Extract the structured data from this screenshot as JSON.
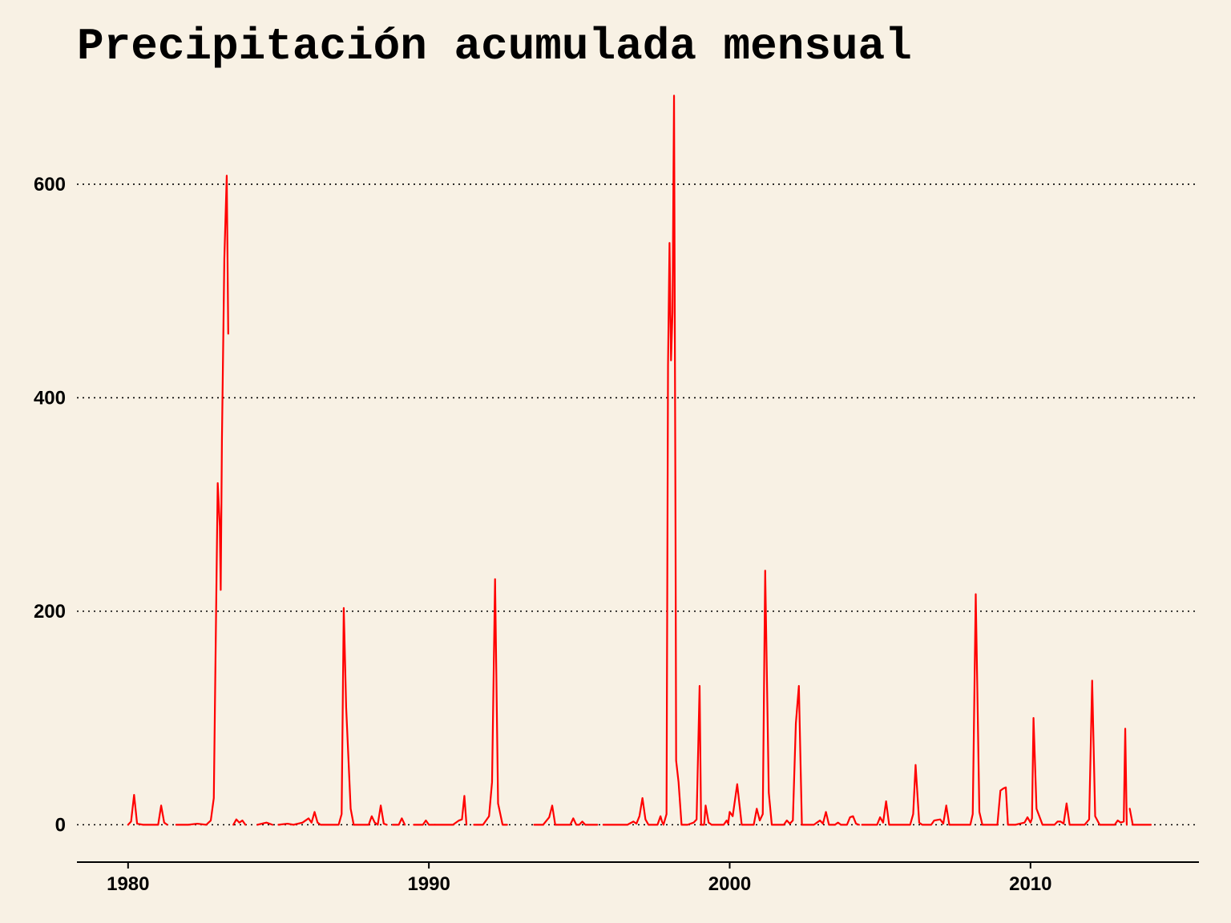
{
  "chart_data": {
    "type": "line",
    "title": "Precipitación acumulada mensual",
    "xlabel": "",
    "ylabel": "",
    "xlim": [
      1978.3,
      2015.6
    ],
    "ylim": [
      -35,
      690
    ],
    "x_ticks": [
      1980,
      1990,
      2000,
      2010
    ],
    "x_tick_labels": [
      "1980",
      "1990",
      "2000",
      "2010"
    ],
    "y_ticks": [
      0,
      200,
      400,
      600
    ],
    "y_tick_labels": [
      "0",
      "200",
      "400",
      "600"
    ],
    "grid": "horizontal dotted",
    "legend": "none",
    "series": [
      {
        "color": "#FF0000",
        "segments": [
          [
            [
              1980.0,
              0
            ],
            [
              1980.1,
              3
            ],
            [
              1980.2,
              28
            ],
            [
              1980.3,
              1
            ],
            [
              1980.5,
              0
            ],
            [
              1981.0,
              0
            ],
            [
              1981.1,
              18
            ],
            [
              1981.2,
              2
            ],
            [
              1981.3,
              0
            ]
          ],
          [
            [
              1981.6,
              0
            ],
            [
              1982.0,
              0
            ],
            [
              1982.3,
              1
            ],
            [
              1982.6,
              0
            ],
            [
              1982.75,
              4
            ],
            [
              1982.85,
              25
            ],
            [
              1982.9,
              140
            ],
            [
              1982.98,
              320
            ],
            [
              1983.05,
              280
            ],
            [
              1983.08,
              220
            ],
            [
              1983.12,
              360
            ],
            [
              1983.2,
              530
            ],
            [
              1983.28,
              608
            ],
            [
              1983.33,
              460
            ]
          ],
          [
            [
              1983.5,
              0
            ],
            [
              1983.6,
              5
            ],
            [
              1983.7,
              2
            ],
            [
              1983.8,
              4
            ],
            [
              1983.9,
              0
            ]
          ],
          [
            [
              1984.3,
              0
            ],
            [
              1984.6,
              2
            ],
            [
              1984.8,
              0
            ]
          ],
          [
            [
              1985.0,
              0
            ],
            [
              1985.3,
              1
            ],
            [
              1985.5,
              0
            ],
            [
              1985.8,
              2
            ],
            [
              1986.0,
              6
            ],
            [
              1986.1,
              2
            ],
            [
              1986.2,
              12
            ],
            [
              1986.3,
              2
            ],
            [
              1986.4,
              0
            ],
            [
              1986.6,
              0
            ],
            [
              1987.0,
              0
            ],
            [
              1987.1,
              10
            ],
            [
              1987.17,
              203
            ],
            [
              1987.25,
              110
            ],
            [
              1987.4,
              15
            ],
            [
              1987.5,
              0
            ],
            [
              1988.0,
              0
            ],
            [
              1988.1,
              8
            ],
            [
              1988.2,
              2
            ],
            [
              1988.3,
              0
            ],
            [
              1988.4,
              18
            ],
            [
              1988.5,
              1
            ],
            [
              1988.6,
              0
            ]
          ],
          [
            [
              1988.8,
              0
            ],
            [
              1989.0,
              0
            ],
            [
              1989.1,
              6
            ],
            [
              1989.2,
              0
            ]
          ],
          [
            [
              1989.5,
              0
            ],
            [
              1989.8,
              0
            ],
            [
              1989.9,
              4
            ],
            [
              1990.0,
              0
            ],
            [
              1990.2,
              0
            ]
          ],
          [
            [
              1990.2,
              0
            ],
            [
              1990.5,
              0
            ],
            [
              1990.8,
              0
            ],
            [
              1991.0,
              4
            ],
            [
              1991.1,
              5
            ],
            [
              1991.18,
              27
            ],
            [
              1991.25,
              0
            ]
          ],
          [
            [
              1991.5,
              0
            ],
            [
              1991.8,
              0
            ],
            [
              1992.0,
              8
            ],
            [
              1992.1,
              40
            ],
            [
              1992.2,
              230
            ],
            [
              1992.3,
              20
            ],
            [
              1992.45,
              0
            ],
            [
              1992.6,
              0
            ]
          ],
          [
            [
              1993.5,
              0
            ],
            [
              1993.8,
              0
            ],
            [
              1994.0,
              7
            ],
            [
              1994.1,
              18
            ],
            [
              1994.2,
              0
            ],
            [
              1994.5,
              0
            ],
            [
              1994.7,
              0
            ],
            [
              1994.8,
              6
            ],
            [
              1994.9,
              0
            ],
            [
              1995.0,
              0
            ],
            [
              1995.1,
              3
            ],
            [
              1995.2,
              0
            ],
            [
              1995.5,
              0
            ],
            [
              1995.6,
              0
            ]
          ],
          [
            [
              1995.8,
              0
            ],
            [
              1996.2,
              0
            ],
            [
              1996.6,
              0
            ],
            [
              1996.8,
              3
            ],
            [
              1996.9,
              1
            ],
            [
              1997.0,
              8
            ],
            [
              1997.1,
              25
            ],
            [
              1997.2,
              5
            ],
            [
              1997.3,
              0
            ],
            [
              1997.6,
              0
            ],
            [
              1997.7,
              8
            ],
            [
              1997.75,
              3
            ],
            [
              1997.8,
              0
            ],
            [
              1997.9,
              10
            ],
            [
              1997.95,
              430
            ],
            [
              1998.0,
              545
            ],
            [
              1998.05,
              435
            ],
            [
              1998.1,
              480
            ],
            [
              1998.15,
              683
            ],
            [
              1998.2,
              270
            ],
            [
              1998.22,
              60
            ],
            [
              1998.3,
              40
            ],
            [
              1998.4,
              0
            ],
            [
              1998.6,
              0
            ],
            [
              1998.8,
              2
            ],
            [
              1998.9,
              5
            ],
            [
              1999.0,
              130
            ],
            [
              1999.05,
              0
            ],
            [
              1999.15,
              0
            ],
            [
              1999.2,
              18
            ],
            [
              1999.3,
              2
            ],
            [
              1999.4,
              0
            ],
            [
              1999.8,
              0
            ],
            [
              1999.9,
              4
            ],
            [
              1999.95,
              1
            ],
            [
              2000.0,
              12
            ],
            [
              2000.1,
              8
            ],
            [
              2000.25,
              38
            ],
            [
              2000.4,
              0
            ],
            [
              2000.6,
              0
            ],
            [
              2000.8,
              0
            ],
            [
              2000.9,
              15
            ],
            [
              2001.0,
              4
            ],
            [
              2001.1,
              10
            ],
            [
              2001.18,
              238
            ],
            [
              2001.3,
              30
            ],
            [
              2001.4,
              0
            ],
            [
              2001.8,
              0
            ],
            [
              2001.9,
              4
            ],
            [
              2002.0,
              1
            ],
            [
              2002.1,
              4
            ],
            [
              2002.2,
              95
            ],
            [
              2002.3,
              130
            ],
            [
              2002.4,
              0
            ],
            [
              2002.8,
              0
            ],
            [
              2002.9,
              2
            ],
            [
              2003.0,
              4
            ],
            [
              2003.1,
              1
            ],
            [
              2003.2,
              12
            ],
            [
              2003.3,
              0
            ],
            [
              2003.5,
              0
            ],
            [
              2003.6,
              2
            ],
            [
              2003.7,
              0
            ],
            [
              2003.9,
              0
            ],
            [
              2004.0,
              7
            ],
            [
              2004.1,
              8
            ],
            [
              2004.2,
              1
            ],
            [
              2004.3,
              0
            ]
          ],
          [
            [
              2004.4,
              0
            ],
            [
              2004.7,
              0
            ],
            [
              2004.9,
              0
            ],
            [
              2005.0,
              7
            ],
            [
              2005.1,
              2
            ],
            [
              2005.2,
              22
            ],
            [
              2005.3,
              0
            ],
            [
              2005.6,
              0
            ],
            [
              2006.0,
              0
            ],
            [
              2006.1,
              10
            ],
            [
              2006.18,
              56
            ],
            [
              2006.3,
              2
            ],
            [
              2006.4,
              0
            ],
            [
              2006.7,
              0
            ],
            [
              2006.8,
              4
            ],
            [
              2007.0,
              5
            ],
            [
              2007.1,
              1
            ],
            [
              2007.2,
              18
            ],
            [
              2007.3,
              0
            ],
            [
              2007.6,
              0
            ],
            [
              2008.0,
              0
            ],
            [
              2008.08,
              10
            ],
            [
              2008.18,
              216
            ],
            [
              2008.3,
              12
            ],
            [
              2008.4,
              0
            ],
            [
              2008.9,
              0
            ],
            [
              2009.0,
              32
            ],
            [
              2009.1,
              34
            ],
            [
              2009.18,
              35
            ],
            [
              2009.25,
              0
            ],
            [
              2009.5,
              0
            ],
            [
              2009.8,
              2
            ],
            [
              2009.9,
              7
            ],
            [
              2010.0,
              2
            ],
            [
              2010.05,
              6
            ],
            [
              2010.1,
              100
            ],
            [
              2010.2,
              15
            ],
            [
              2010.4,
              0
            ],
            [
              2010.8,
              0
            ],
            [
              2010.9,
              3
            ],
            [
              2011.0,
              3
            ],
            [
              2011.1,
              1
            ],
            [
              2011.2,
              20
            ],
            [
              2011.3,
              0
            ],
            [
              2011.8,
              0
            ],
            [
              2011.95,
              5
            ],
            [
              2012.05,
              135
            ],
            [
              2012.15,
              8
            ],
            [
              2012.3,
              0
            ],
            [
              2012.8,
              0
            ],
            [
              2012.9,
              4
            ],
            [
              2013.0,
              2
            ],
            [
              2013.1,
              3
            ],
            [
              2013.15,
              90
            ],
            [
              2013.2,
              0
            ]
          ],
          [
            [
              2013.3,
              15
            ],
            [
              2013.4,
              0
            ],
            [
              2013.7,
              0
            ],
            [
              2014.0,
              0
            ]
          ]
        ]
      }
    ]
  }
}
